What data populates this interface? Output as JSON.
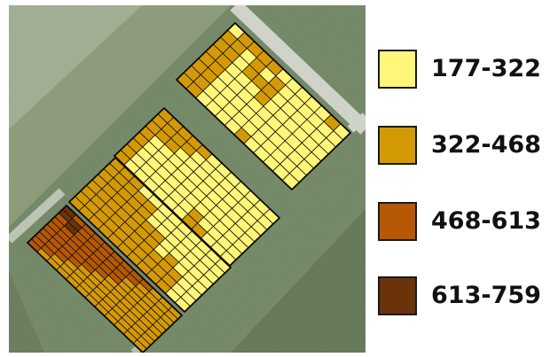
{
  "legend": {
    "items": [
      {
        "label": "177-322",
        "color": "#fff67a"
      },
      {
        "label": "322-468",
        "color": "#d49a06"
      },
      {
        "label": "468-613",
        "color": "#b65806"
      },
      {
        "label": "613-759",
        "color": "#6a3309"
      }
    ]
  },
  "map": {
    "background_colors": [
      "#6f8562",
      "#8a9a78",
      "#b7bfac",
      "#d6d8cf",
      "#5f7353"
    ],
    "plots": [
      {
        "id": "plot-1",
        "grid": [
          "01111111",
          "11111111",
          "10000000",
          "11100000",
          "10100000",
          "01110000",
          "00000001",
          "00000000",
          "00000000",
          "00000000",
          "10000000",
          "00000000"
        ]
      },
      {
        "id": "plot-2",
        "grid": [
          "11111111",
          "11100000",
          "11100000",
          "11000000",
          "10000000",
          "00000000",
          "00000000",
          "00000011",
          "00000001",
          "00000000",
          "00000000",
          "00000000"
        ]
      },
      {
        "id": "plot-3",
        "grid": [
          "11111111",
          "11111111",
          "11111111",
          "01111111",
          "01111111",
          "00011111",
          "00011111",
          "00000111",
          "00001111",
          "00000111",
          "00000000",
          "00000000"
        ]
      },
      {
        "id": "plot-4",
        "grid": [
          "3322222222",
          "2332222221",
          "2222222211",
          "2222222111",
          "2222221111",
          "2222211111",
          "2222111111",
          "2211111111",
          "2111111111",
          "1111111111",
          "1111111111",
          "1111111111"
        ]
      }
    ]
  }
}
